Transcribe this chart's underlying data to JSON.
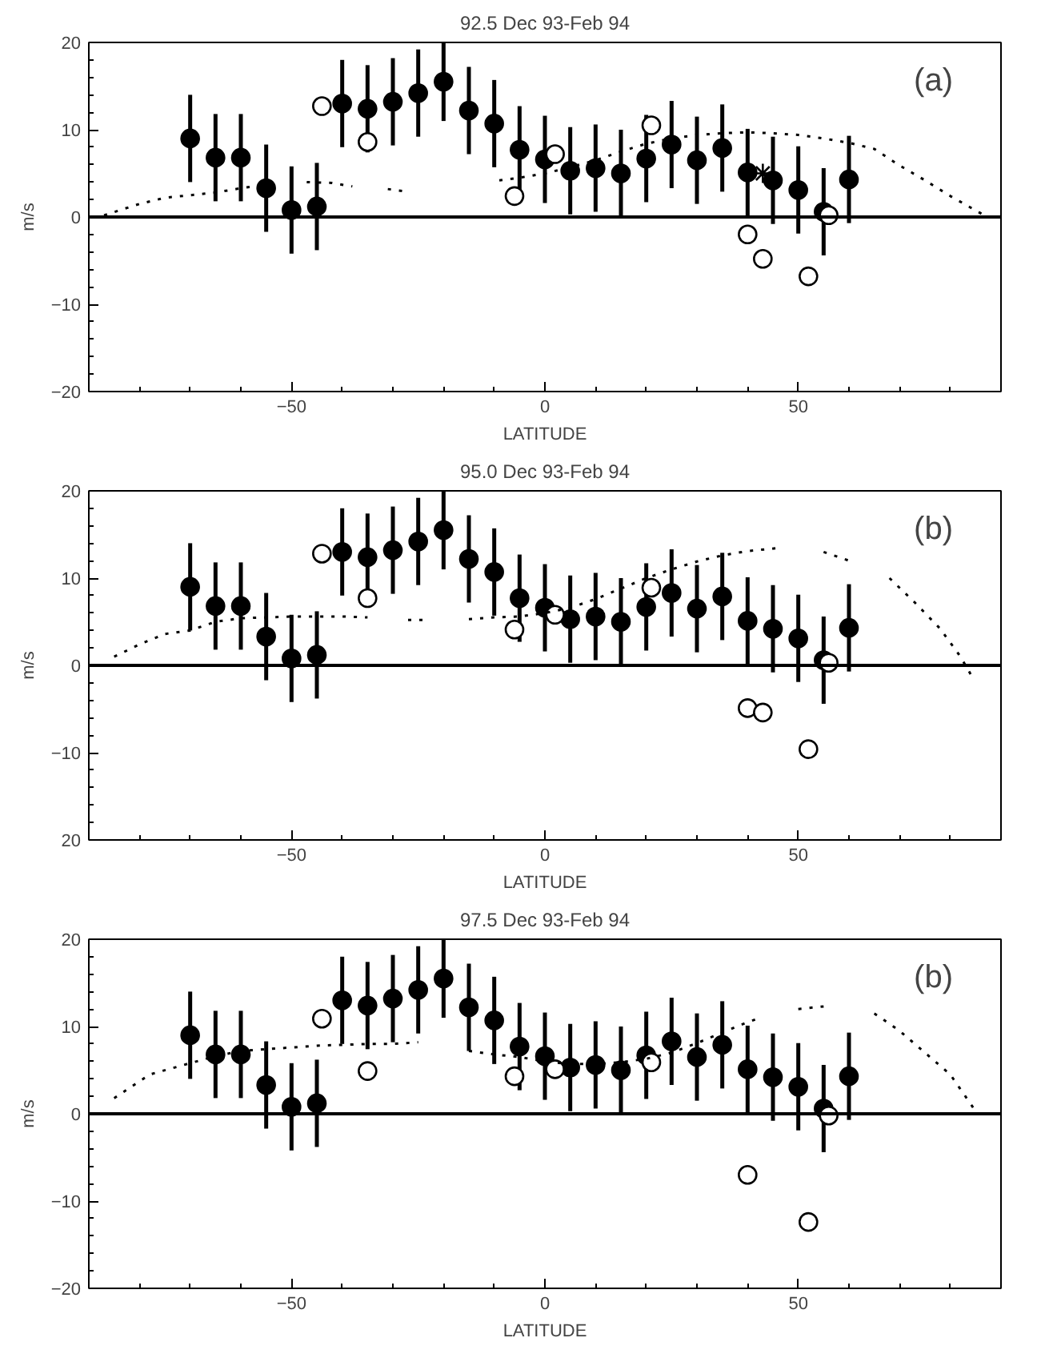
{
  "chart_data": [
    {
      "type": "scatter",
      "title": "92.5 Dec 93-Feb 94",
      "xlabel": "LATITUDE",
      "ylabel": "m/s",
      "xlim": [
        -90,
        90
      ],
      "ylim": [
        -20,
        20
      ],
      "xticks": [
        -50,
        0,
        50
      ],
      "yticks": [
        -20,
        -10,
        0,
        10,
        20
      ],
      "grid": false,
      "annotations": [
        "(a)"
      ],
      "ref_lines": [
        {
          "axis": "y",
          "value": 0,
          "label": null,
          "color": "#000000",
          "line_style": "solid"
        }
      ],
      "series": [
        {
          "type": "scatter",
          "marker": "circle",
          "color": "#000000",
          "x": [
            -70,
            -65,
            -60,
            -55,
            -50,
            -45,
            -40,
            -35,
            -30,
            -25,
            -20,
            -15,
            -10,
            -5,
            0,
            5,
            10,
            15,
            20,
            25,
            30,
            35,
            40,
            45,
            50,
            55,
            60
          ],
          "values": [
            9,
            6.8,
            6.8,
            3.3,
            0.8,
            1.2,
            13,
            12.4,
            13.2,
            14.2,
            15.5,
            12.2,
            10.7,
            7.7,
            6.6,
            5.3,
            5.6,
            5,
            6.7,
            8.3,
            6.5,
            7.9,
            5.1,
            4.2,
            3.1,
            0.6,
            4.3
          ],
          "errors": [
            5,
            5,
            5,
            5,
            5,
            5,
            5,
            5,
            5,
            5,
            4.5,
            5,
            5,
            5,
            5,
            5,
            5,
            5,
            5,
            5,
            5,
            5,
            5,
            5,
            5,
            5,
            5
          ]
        },
        {
          "type": "scatter",
          "marker": "circle",
          "color": "#000000",
          "x": [
            -44,
            -35,
            -6,
            2,
            21,
            40,
            43,
            52,
            56
          ],
          "values": [
            12.7,
            8.6,
            2.4,
            7.2,
            10.5,
            -2,
            -4.8,
            -6.8,
            0.2
          ]
        },
        {
          "type": "scatter",
          "marker": "cross",
          "color": "#000000",
          "x": [
            43
          ],
          "values": [
            5
          ]
        },
        {
          "type": "line",
          "marker": "none",
          "line_style": "dotted",
          "color": "#000000",
          "x": [
            -87,
            -80,
            -75,
            -70,
            -65,
            -60,
            -55,
            -51,
            -47,
            -42,
            -38,
            -35,
            -31,
            -27,
            -18,
            -9,
            -5,
            0,
            5,
            10,
            15,
            20,
            25,
            30,
            35,
            40,
            45,
            50,
            55,
            60,
            65,
            70,
            75,
            80,
            87
          ],
          "values": [
            0.2,
            1.5,
            2.2,
            2.5,
            2.8,
            3.3,
            3.7,
            null,
            4,
            3.9,
            3.5,
            null,
            3.2,
            2.9,
            null,
            4.2,
            4.5,
            5,
            5.7,
            6.5,
            7.5,
            8.4,
            9,
            9.4,
            9.6,
            9.7,
            9.6,
            9.4,
            9,
            8.5,
            7.8,
            5.9,
            4.2,
            2.4,
            0.1
          ]
        }
      ]
    },
    {
      "type": "scatter",
      "title": "95.0 Dec 93-Feb 94",
      "xlabel": "LATITUDE",
      "ylabel": "m/s",
      "xlim": [
        -90,
        90
      ],
      "ylim": [
        -20,
        20
      ],
      "xticks": [
        -50,
        0,
        50
      ],
      "yticks": [
        {
          "value": -20,
          "label": "20"
        },
        -10,
        0,
        10,
        20
      ],
      "grid": false,
      "annotations": [
        "(b)"
      ],
      "ref_lines": [
        {
          "axis": "y",
          "value": 0,
          "label": null,
          "color": "#000000",
          "line_style": "solid"
        }
      ],
      "series": [
        {
          "type": "scatter",
          "marker": "circle",
          "color": "#000000",
          "x": [
            -70,
            -65,
            -60,
            -55,
            -50,
            -45,
            -40,
            -35,
            -30,
            -25,
            -20,
            -15,
            -10,
            -5,
            0,
            5,
            10,
            15,
            20,
            25,
            30,
            35,
            40,
            45,
            50,
            55,
            60
          ],
          "values": [
            9,
            6.8,
            6.8,
            3.3,
            0.8,
            1.2,
            13,
            12.4,
            13.2,
            14.2,
            15.5,
            12.2,
            10.7,
            7.7,
            6.6,
            5.3,
            5.6,
            5,
            6.7,
            8.3,
            6.5,
            7.9,
            5.1,
            4.2,
            3.1,
            0.6,
            4.3
          ],
          "errors": [
            5,
            5,
            5,
            5,
            5,
            5,
            5,
            5,
            5,
            5,
            4.5,
            5,
            5,
            5,
            5,
            5,
            5,
            5,
            5,
            5,
            5,
            5,
            5,
            5,
            5,
            5,
            5
          ]
        },
        {
          "type": "scatter",
          "marker": "circle",
          "color": "#000000",
          "x": [
            -44,
            -35,
            -6,
            2,
            21,
            40,
            43,
            52,
            56
          ],
          "values": [
            12.8,
            7.7,
            4.1,
            5.8,
            8.9,
            -4.9,
            -5.4,
            -9.6,
            0.3
          ]
        },
        {
          "type": "line",
          "marker": "none",
          "line_style": "dotted",
          "color": "#000000",
          "x": [
            -85,
            -80,
            -75,
            -70,
            -65,
            -60,
            -55,
            -50,
            -45,
            -40,
            -35,
            -30,
            -27,
            -23,
            -20,
            -15,
            -10,
            -5,
            0,
            5,
            10,
            15,
            20,
            25,
            30,
            35,
            40,
            47,
            51,
            55,
            60,
            64,
            68,
            73,
            78,
            82,
            84
          ],
          "values": [
            1,
            2.4,
            3.6,
            4,
            5,
            5.4,
            5.5,
            5.6,
            5.6,
            5.6,
            5.5,
            null,
            5.2,
            5.2,
            null,
            5.3,
            5.5,
            5.6,
            6,
            6.6,
            7.6,
            8.8,
            10,
            11,
            11.9,
            12.6,
            13.1,
            13.5,
            null,
            13,
            12,
            null,
            10,
            7.2,
            4.2,
            1,
            -1
          ]
        }
      ]
    },
    {
      "type": "scatter",
      "title": "97.5 Dec 93-Feb 94",
      "xlabel": "LATITUDE",
      "ylabel": "m/s",
      "xlim": [
        -90,
        90
      ],
      "ylim": [
        -20,
        20
      ],
      "xticks": [
        -50,
        0,
        50
      ],
      "yticks": [
        -20,
        -10,
        0,
        10,
        20
      ],
      "grid": false,
      "annotations": [
        "(b)"
      ],
      "ref_lines": [
        {
          "axis": "y",
          "value": 0,
          "label": null,
          "color": "#000000",
          "line_style": "solid"
        }
      ],
      "series": [
        {
          "type": "scatter",
          "marker": "circle",
          "color": "#000000",
          "x": [
            -70,
            -65,
            -60,
            -55,
            -50,
            -45,
            -40,
            -35,
            -30,
            -25,
            -20,
            -15,
            -10,
            -5,
            0,
            5,
            10,
            15,
            20,
            25,
            30,
            35,
            40,
            45,
            50,
            55,
            60
          ],
          "values": [
            9,
            6.8,
            6.8,
            3.3,
            0.8,
            1.2,
            13,
            12.4,
            13.2,
            14.2,
            15.5,
            12.2,
            10.7,
            7.7,
            6.6,
            5.3,
            5.6,
            5,
            6.7,
            8.3,
            6.5,
            7.9,
            5.1,
            4.2,
            3.1,
            0.6,
            4.3
          ],
          "errors": [
            5,
            5,
            5,
            5,
            5,
            5,
            5,
            5,
            5,
            5,
            4.5,
            5,
            5,
            5,
            5,
            5,
            5,
            5,
            5,
            5,
            5,
            5,
            5,
            5,
            5,
            5,
            5
          ]
        },
        {
          "type": "scatter",
          "marker": "circle",
          "color": "#000000",
          "x": [
            -44,
            -35,
            -6,
            2,
            21,
            40,
            52,
            56
          ],
          "values": [
            10.9,
            4.9,
            4.3,
            5.1,
            5.9,
            -7,
            -12.4,
            -0.2
          ]
        },
        {
          "type": "line",
          "marker": "none",
          "line_style": "dotted",
          "color": "#000000",
          "x": [
            -85,
            -78,
            -70,
            -65,
            -60,
            -55,
            -50,
            -45,
            -40,
            -35,
            -30,
            -25,
            -20,
            -15,
            -10,
            -5,
            0,
            5,
            10,
            15,
            20,
            25,
            30,
            35,
            40,
            42,
            46,
            50,
            55,
            60,
            65,
            70,
            75,
            80,
            85
          ],
          "values": [
            1.8,
            4.5,
            5.8,
            6.6,
            7.2,
            7.4,
            7.6,
            7.8,
            7.9,
            8,
            8,
            8.2,
            null,
            7.2,
            6.8,
            6.5,
            6,
            5.7,
            5.7,
            5.9,
            6.3,
            7,
            8.1,
            9.3,
            10.5,
            10.9,
            null,
            12,
            12.3,
            null,
            11.5,
            9.5,
            7,
            4.5,
            0.3
          ]
        }
      ]
    }
  ]
}
